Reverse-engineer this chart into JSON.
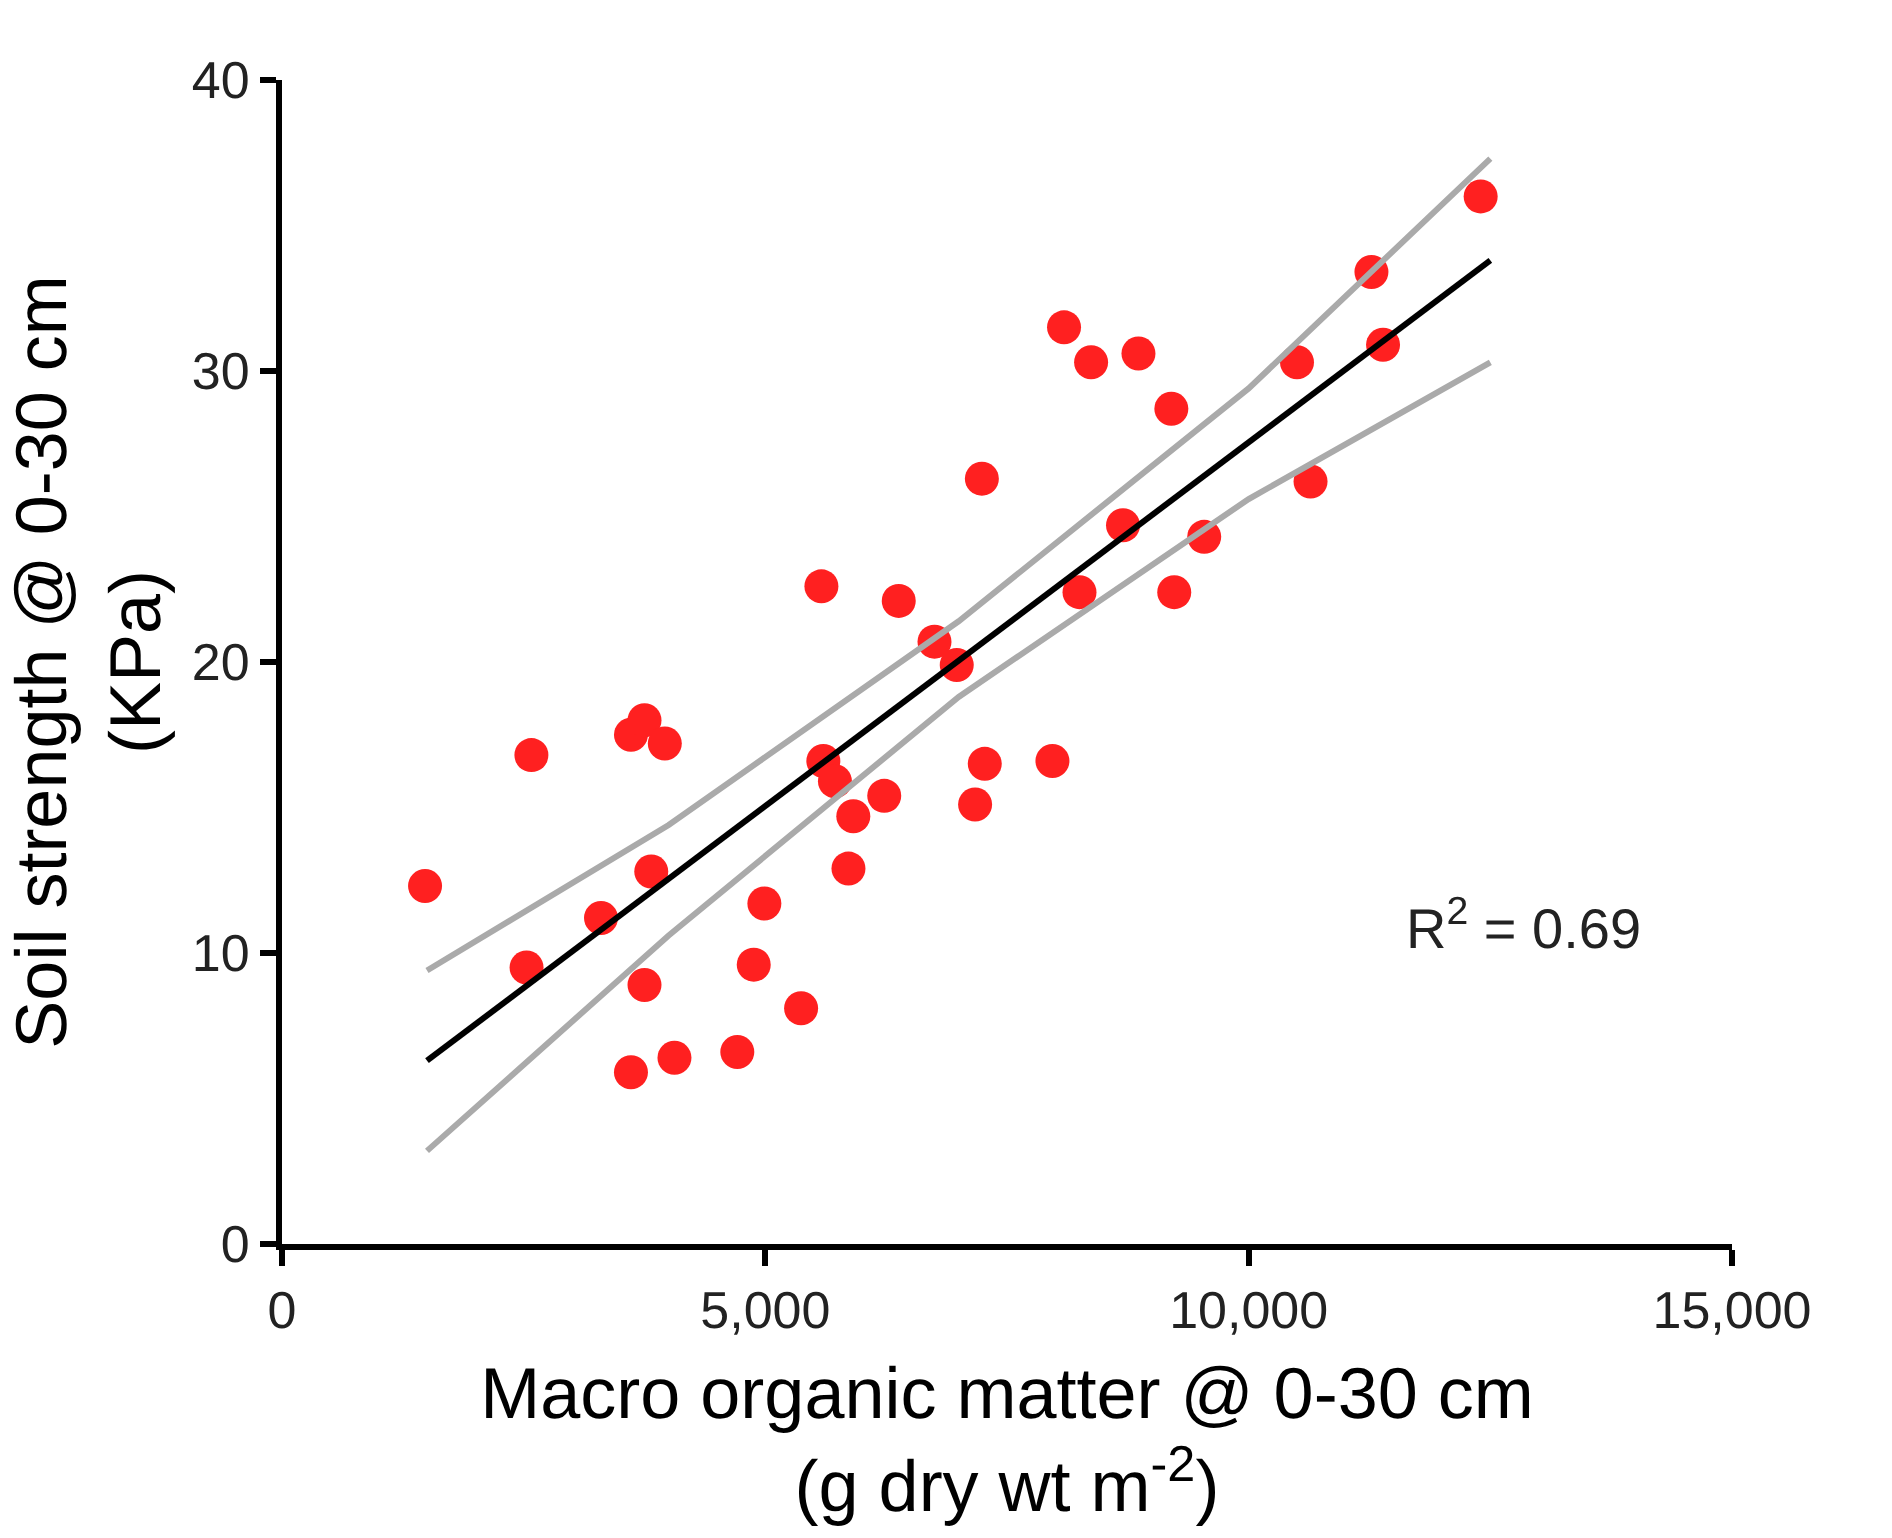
{
  "chart_data": {
    "type": "scatter",
    "xlabel": "Macro organic matter @ 0-30 cm\n(g dry wt m$^{-2}$)",
    "ylabel": "Soil strength @ 0-30 cm\n(KPa)",
    "annotations": [
      "R$^{2}$ = 0.69"
    ],
    "xlim": [
      0,
      15000
    ],
    "ylim": [
      0,
      40
    ],
    "xticks": [
      0,
      {
        "value": 5000,
        "label": "5,000"
      },
      {
        "value": 10000,
        "label": "10,000"
      },
      {
        "value": 15000,
        "label": "15,000"
      }
    ],
    "yticks": [
      0,
      10,
      20,
      30,
      40
    ],
    "series": [
      {
        "marker": "circle",
        "color": "#ff2020",
        "x": [
          1480,
          2580,
          2530,
          3300,
          3610,
          3750,
          3960,
          3820,
          3750,
          3610,
          4060,
          4710,
          4880,
          4990,
          5370,
          5600,
          5580,
          5720,
          5910,
          5860,
          6230,
          6380,
          6750,
          6980,
          7170,
          7270,
          7240,
          7970,
          8090,
          8370,
          8860,
          8700,
          8250,
          9200,
          9540,
          9230,
          10500,
          10640,
          11270,
          11390,
          12400
        ],
        "values": [
          12.3,
          16.8,
          9.5,
          11.2,
          17.5,
          18.0,
          17.2,
          12.8,
          8.9,
          5.9,
          6.4,
          6.6,
          9.6,
          11.7,
          8.1,
          16.6,
          22.6,
          15.9,
          14.7,
          12.9,
          15.4,
          22.1,
          20.7,
          19.9,
          15.1,
          16.5,
          26.3,
          16.6,
          31.5,
          30.3,
          30.6,
          24.7,
          22.4,
          28.7,
          24.3,
          22.4,
          30.3,
          26.2,
          33.4,
          30.9,
          36.0
        ]
      },
      {
        "type": "line",
        "marker": "none",
        "line_style": "solid",
        "color": "#000000",
        "x": [
          1500,
          12500
        ],
        "values": [
          6.3,
          33.8
        ]
      },
      {
        "type": "line",
        "marker": "none",
        "line_style": "solid",
        "color": "#aaaaaa",
        "x": [
          1500,
          4000,
          7000,
          10000,
          12500
        ],
        "values": [
          9.4,
          14.4,
          21.4,
          29.4,
          37.3
        ]
      },
      {
        "type": "line",
        "marker": "none",
        "line_style": "solid",
        "color": "#aaaaaa",
        "x": [
          1500,
          4000,
          7000,
          10000,
          12500
        ],
        "values": [
          3.2,
          10.6,
          18.8,
          25.6,
          30.3
        ]
      }
    ]
  }
}
